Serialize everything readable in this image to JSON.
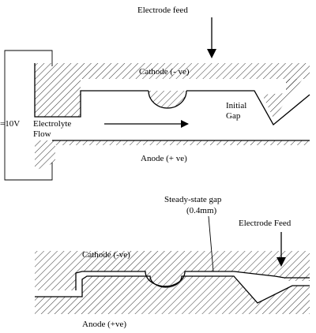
{
  "top": {
    "electrode_feed": "Electrode feed",
    "cathode": "Cathode (- ve)",
    "anode": "Anode (+ ve)",
    "voltage": "=10V",
    "electrolyte": "Electrolyte",
    "flow": "Flow",
    "initial": "Initial",
    "gap": "Gap"
  },
  "bottom": {
    "steady_state_gap": "Steady-state gap",
    "gap_value": "(0.4mm)",
    "electrode_feed": "Electrode Feed",
    "cathode": "Cathode (-ve)",
    "anode": "Anode (+ve)"
  }
}
